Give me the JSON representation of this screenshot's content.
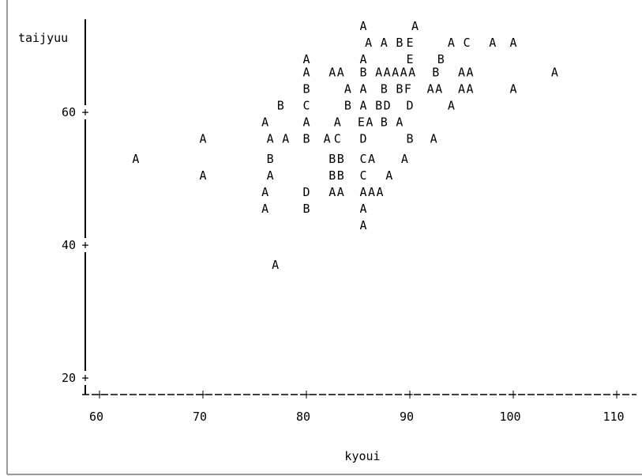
{
  "chart_data": {
    "type": "scatter",
    "xlabel": "kyoui",
    "ylabel": "taijyuu",
    "xlim": [
      58.5,
      111.5
    ],
    "ylim": [
      17.5,
      74
    ],
    "xticks": [
      60,
      70,
      80,
      90,
      100,
      110
    ],
    "yticks": [
      20,
      40,
      60
    ],
    "axis_style": "character-plot",
    "points": [
      {
        "x": 85.5,
        "y": 73,
        "label": "A"
      },
      {
        "x": 90.5,
        "y": 73,
        "label": "A"
      },
      {
        "x": 86,
        "y": 70.5,
        "label": "A"
      },
      {
        "x": 87.5,
        "y": 70.5,
        "label": "A"
      },
      {
        "x": 89,
        "y": 70.5,
        "label": "B"
      },
      {
        "x": 90,
        "y": 70.5,
        "label": "E"
      },
      {
        "x": 94,
        "y": 70.5,
        "label": "A"
      },
      {
        "x": 95.5,
        "y": 70.5,
        "label": "C"
      },
      {
        "x": 98,
        "y": 70.5,
        "label": "A"
      },
      {
        "x": 100,
        "y": 70.5,
        "label": "A"
      },
      {
        "x": 80,
        "y": 68,
        "label": "A"
      },
      {
        "x": 85.5,
        "y": 68,
        "label": "A"
      },
      {
        "x": 90,
        "y": 68,
        "label": "E"
      },
      {
        "x": 93,
        "y": 68,
        "label": "B"
      },
      {
        "x": 80,
        "y": 66,
        "label": "A"
      },
      {
        "x": 82.5,
        "y": 66,
        "label": "A"
      },
      {
        "x": 83.3,
        "y": 66,
        "label": "A"
      },
      {
        "x": 85.5,
        "y": 66,
        "label": "B"
      },
      {
        "x": 87,
        "y": 66,
        "label": "A"
      },
      {
        "x": 87.8,
        "y": 66,
        "label": "A"
      },
      {
        "x": 88.6,
        "y": 66,
        "label": "A"
      },
      {
        "x": 89.4,
        "y": 66,
        "label": "A"
      },
      {
        "x": 90.2,
        "y": 66,
        "label": "A"
      },
      {
        "x": 92.5,
        "y": 66,
        "label": "B"
      },
      {
        "x": 95,
        "y": 66,
        "label": "A"
      },
      {
        "x": 95.8,
        "y": 66,
        "label": "A"
      },
      {
        "x": 104,
        "y": 66,
        "label": "A"
      },
      {
        "x": 80,
        "y": 63.5,
        "label": "B"
      },
      {
        "x": 84,
        "y": 63.5,
        "label": "A"
      },
      {
        "x": 85.5,
        "y": 63.5,
        "label": "A"
      },
      {
        "x": 87.5,
        "y": 63.5,
        "label": "B"
      },
      {
        "x": 89,
        "y": 63.5,
        "label": "B"
      },
      {
        "x": 89.8,
        "y": 63.5,
        "label": "F"
      },
      {
        "x": 92,
        "y": 63.5,
        "label": "A"
      },
      {
        "x": 92.8,
        "y": 63.5,
        "label": "A"
      },
      {
        "x": 95,
        "y": 63.5,
        "label": "A"
      },
      {
        "x": 95.8,
        "y": 63.5,
        "label": "A"
      },
      {
        "x": 100,
        "y": 63.5,
        "label": "A"
      },
      {
        "x": 77.5,
        "y": 61,
        "label": "B"
      },
      {
        "x": 80,
        "y": 61,
        "label": "C"
      },
      {
        "x": 84,
        "y": 61,
        "label": "B"
      },
      {
        "x": 85.5,
        "y": 61,
        "label": "A"
      },
      {
        "x": 87,
        "y": 61,
        "label": "B"
      },
      {
        "x": 87.8,
        "y": 61,
        "label": "D"
      },
      {
        "x": 90,
        "y": 61,
        "label": "D"
      },
      {
        "x": 94,
        "y": 61,
        "label": "A"
      },
      {
        "x": 76,
        "y": 58.5,
        "label": "A"
      },
      {
        "x": 80,
        "y": 58.5,
        "label": "A"
      },
      {
        "x": 83,
        "y": 58.5,
        "label": "A"
      },
      {
        "x": 85.3,
        "y": 58.5,
        "label": "E"
      },
      {
        "x": 86.1,
        "y": 58.5,
        "label": "A"
      },
      {
        "x": 87.5,
        "y": 58.5,
        "label": "B"
      },
      {
        "x": 89,
        "y": 58.5,
        "label": "A"
      },
      {
        "x": 70,
        "y": 56,
        "label": "A"
      },
      {
        "x": 76.5,
        "y": 56,
        "label": "A"
      },
      {
        "x": 78,
        "y": 56,
        "label": "A"
      },
      {
        "x": 80,
        "y": 56,
        "label": "B"
      },
      {
        "x": 82,
        "y": 56,
        "label": "A"
      },
      {
        "x": 83,
        "y": 56,
        "label": "C"
      },
      {
        "x": 85.5,
        "y": 56,
        "label": "D"
      },
      {
        "x": 90,
        "y": 56,
        "label": "B"
      },
      {
        "x": 92.3,
        "y": 56,
        "label": "A"
      },
      {
        "x": 63.5,
        "y": 53,
        "label": "A"
      },
      {
        "x": 76.5,
        "y": 53,
        "label": "B"
      },
      {
        "x": 82.5,
        "y": 53,
        "label": "B"
      },
      {
        "x": 83.3,
        "y": 53,
        "label": "B"
      },
      {
        "x": 85.5,
        "y": 53,
        "label": "C"
      },
      {
        "x": 86.3,
        "y": 53,
        "label": "A"
      },
      {
        "x": 89.5,
        "y": 53,
        "label": "A"
      },
      {
        "x": 70,
        "y": 50.5,
        "label": "A"
      },
      {
        "x": 76.5,
        "y": 50.5,
        "label": "A"
      },
      {
        "x": 82.5,
        "y": 50.5,
        "label": "B"
      },
      {
        "x": 83.3,
        "y": 50.5,
        "label": "B"
      },
      {
        "x": 85.5,
        "y": 50.5,
        "label": "C"
      },
      {
        "x": 88,
        "y": 50.5,
        "label": "A"
      },
      {
        "x": 76,
        "y": 48,
        "label": "A"
      },
      {
        "x": 80,
        "y": 48,
        "label": "D"
      },
      {
        "x": 82.5,
        "y": 48,
        "label": "A"
      },
      {
        "x": 83.3,
        "y": 48,
        "label": "A"
      },
      {
        "x": 85.5,
        "y": 48,
        "label": "A"
      },
      {
        "x": 86.3,
        "y": 48,
        "label": "A"
      },
      {
        "x": 87.1,
        "y": 48,
        "label": "A"
      },
      {
        "x": 76,
        "y": 45.5,
        "label": "A"
      },
      {
        "x": 80,
        "y": 45.5,
        "label": "B"
      },
      {
        "x": 85.5,
        "y": 45.5,
        "label": "A"
      },
      {
        "x": 85.5,
        "y": 43,
        "label": "A"
      },
      {
        "x": 77,
        "y": 37,
        "label": "A"
      }
    ]
  }
}
